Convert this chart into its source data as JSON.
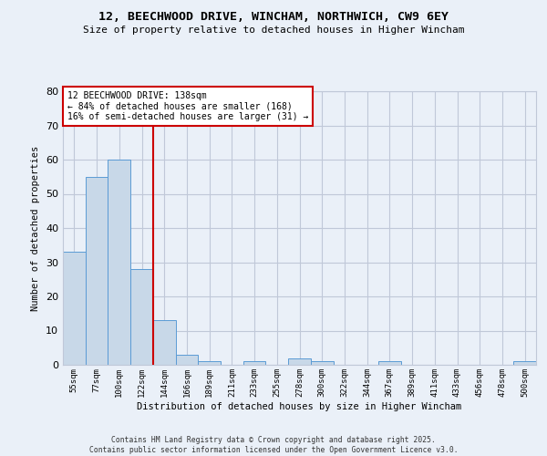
{
  "title1": "12, BEECHWOOD DRIVE, WINCHAM, NORTHWICH, CW9 6EY",
  "title2": "Size of property relative to detached houses in Higher Wincham",
  "xlabel": "Distribution of detached houses by size in Higher Wincham",
  "ylabel": "Number of detached properties",
  "categories": [
    "55sqm",
    "77sqm",
    "100sqm",
    "122sqm",
    "144sqm",
    "166sqm",
    "189sqm",
    "211sqm",
    "233sqm",
    "255sqm",
    "278sqm",
    "300sqm",
    "322sqm",
    "344sqm",
    "367sqm",
    "389sqm",
    "411sqm",
    "433sqm",
    "456sqm",
    "478sqm",
    "500sqm"
  ],
  "values": [
    33,
    55,
    60,
    28,
    13,
    3,
    1,
    0,
    1,
    0,
    2,
    1,
    0,
    0,
    1,
    0,
    0,
    0,
    0,
    0,
    1
  ],
  "bar_color": "#c8d8e8",
  "bar_edge_color": "#5b9bd5",
  "grid_color": "#c0c8d8",
  "bg_color": "#eaf0f8",
  "annotation_text": "12 BEECHWOOD DRIVE: 138sqm\n← 84% of detached houses are smaller (168)\n16% of semi-detached houses are larger (31) →",
  "vline_x": 3.5,
  "vline_color": "#cc0000",
  "annotation_box_color": "#cc0000",
  "annotation_box_facecolor": "white",
  "ylim": [
    0,
    80
  ],
  "yticks": [
    0,
    10,
    20,
    30,
    40,
    50,
    60,
    70,
    80
  ],
  "footer": "Contains HM Land Registry data © Crown copyright and database right 2025.\nContains public sector information licensed under the Open Government Licence v3.0."
}
